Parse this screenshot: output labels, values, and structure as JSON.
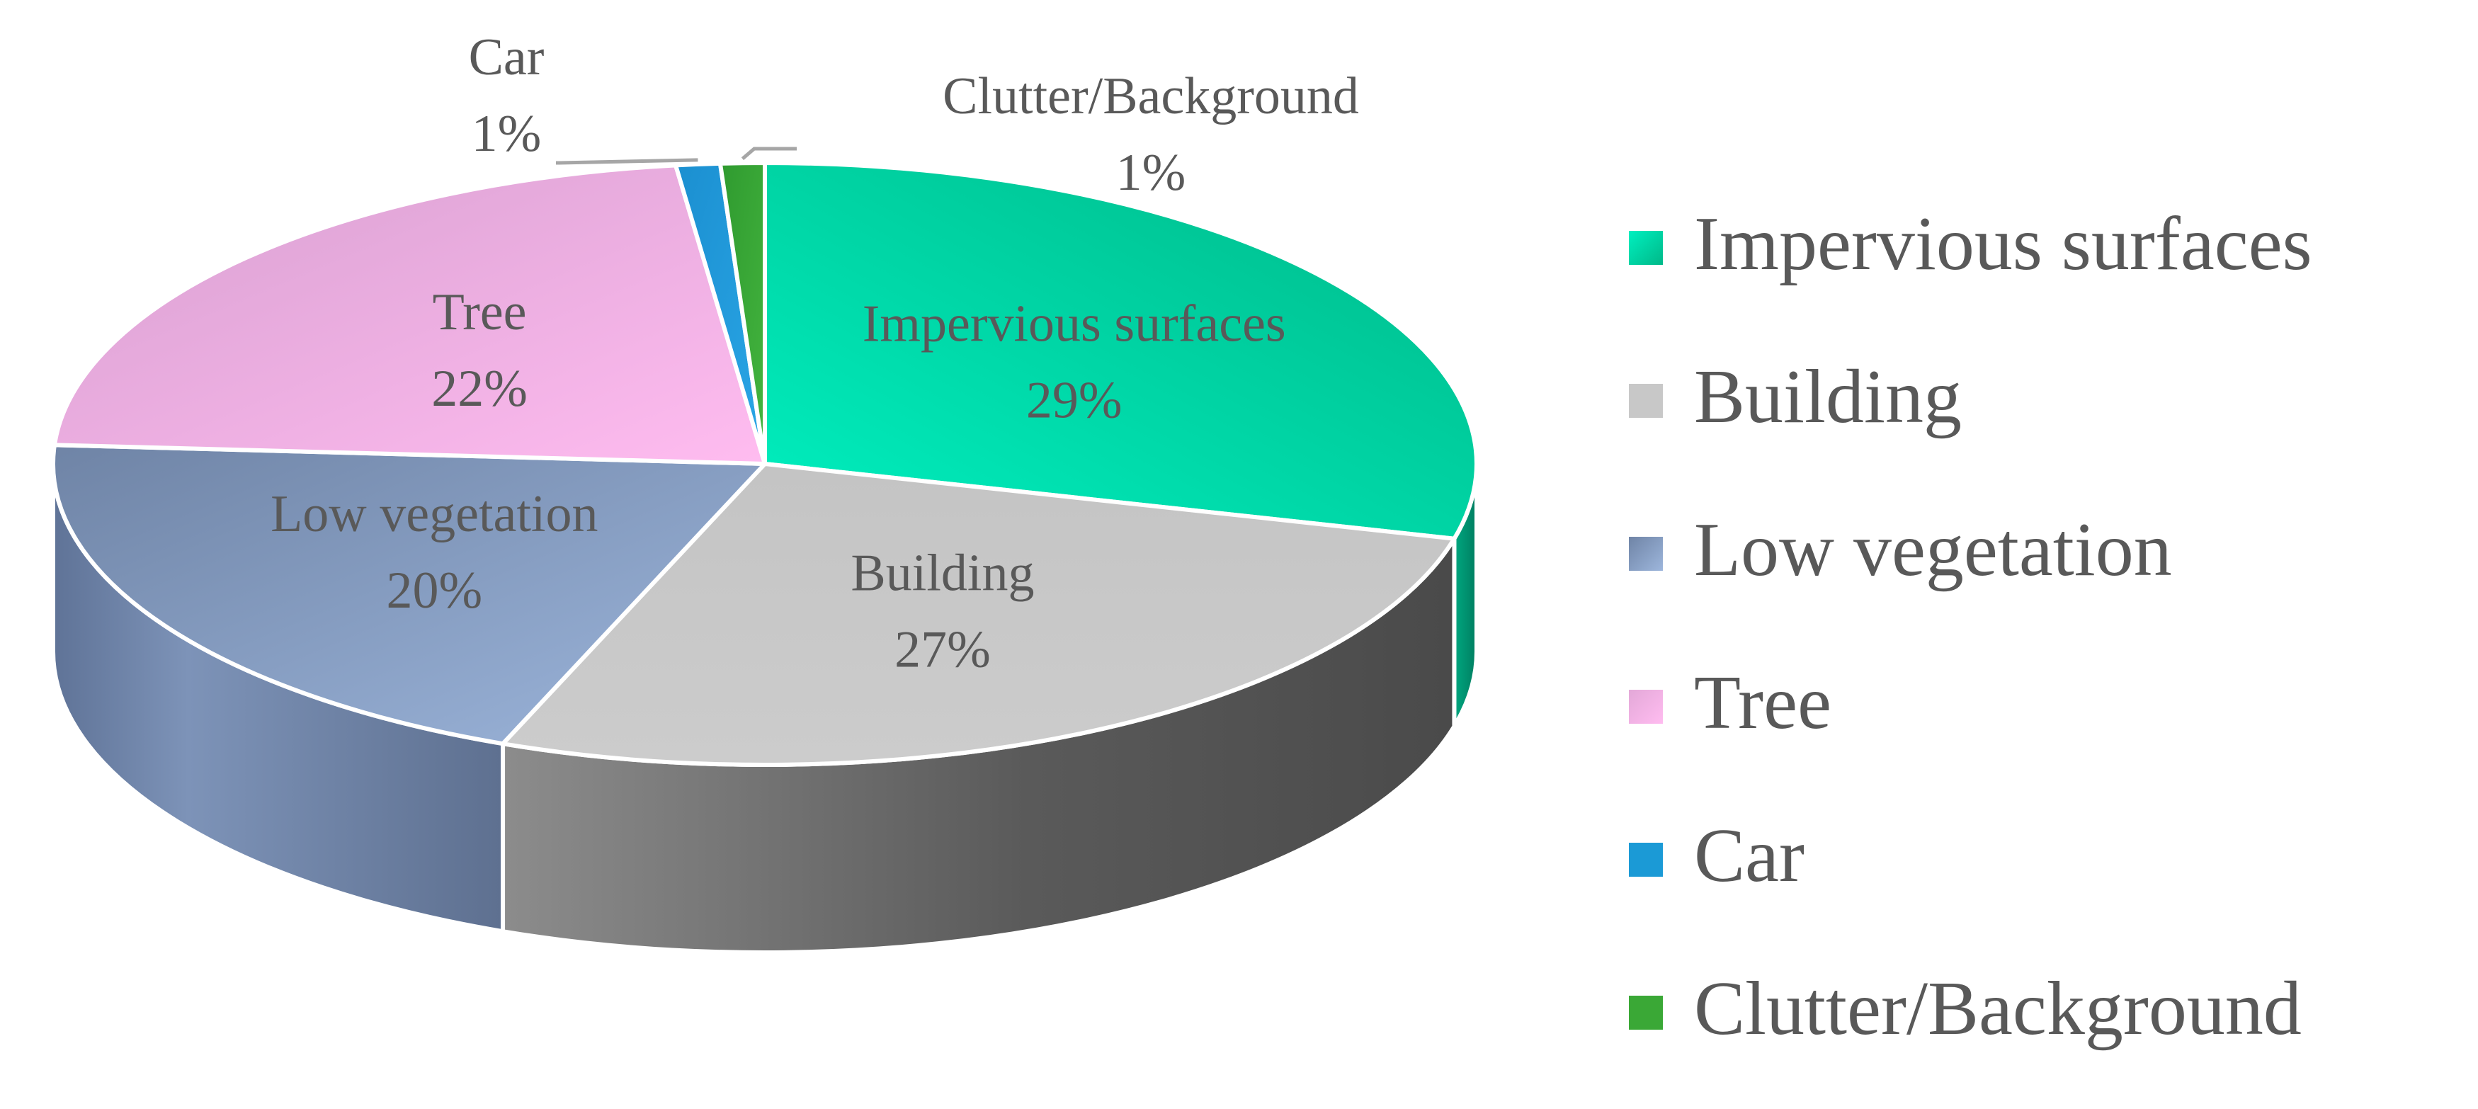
{
  "chart_data": {
    "type": "pie",
    "style": "3d",
    "series": [
      {
        "label": "Impervious surfaces",
        "value": 29,
        "display": "29%",
        "color": "#00d8a8"
      },
      {
        "label": "Building",
        "value": 27,
        "display": "27%",
        "color": "#c8c8c8"
      },
      {
        "label": "Low vegetation",
        "value": 20,
        "display": "20%",
        "color": "#8ea7c9"
      },
      {
        "label": "Tree",
        "value": 22,
        "display": "22%",
        "color": "#f6b2e4"
      },
      {
        "label": "Car",
        "value": 1,
        "display": "1%",
        "color": "#1b9ad6"
      },
      {
        "label": "Clutter/Background",
        "value": 1,
        "display": "1%",
        "color": "#3aa836"
      }
    ],
    "legend_position": "right",
    "data_labels": "category and percentage"
  }
}
